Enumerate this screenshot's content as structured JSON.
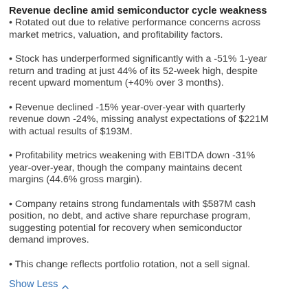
{
  "card": {
    "title": "Revenue decline amid semiconductor cycle weakness",
    "bullets": [
      "• Rotated out due to relative performance concerns across\nmarket metrics, valuation, and profitability factors.",
      "• Stock has underperformed significantly with a -51% 1-year\nreturn and trading at just 44% of its 52-week high, despite\nrecent upward momentum (+40% over 3 months).",
      "• Revenue declined -15% year-over-year with quarterly\nrevenue down -24%, missing analyst expectations of $221M\nwith actual results of $193M.",
      "• Profitability metrics weakening with EBITDA down -31%\nyear-over-year, though the company maintains decent\nmargins (44.6% gross margin).",
      "• Company retains strong fundamentals with $587M cash\nposition, no debt, and active share repurchase program,\nsuggesting potential for recovery when semiconductor\ndemand improves.",
      "• This change reflects portfolio rotation, not a sell signal."
    ],
    "toggle_label": "Show Less",
    "toggle_icon": "chevron-up-icon",
    "link_color": "#2f6fb5"
  }
}
